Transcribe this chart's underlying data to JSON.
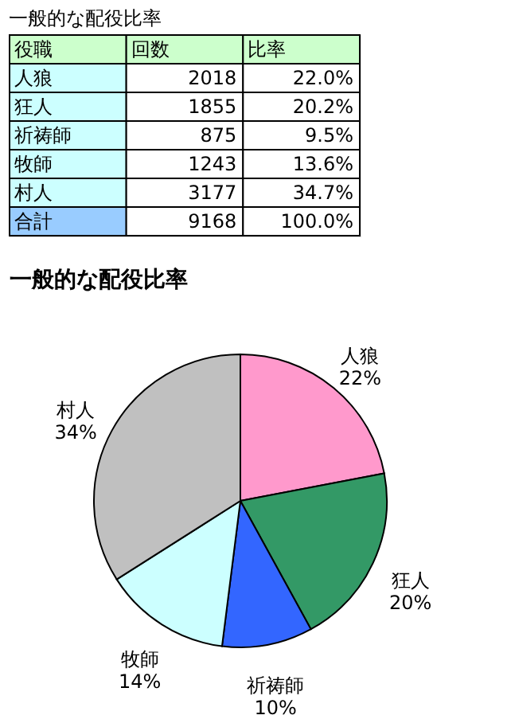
{
  "chart_data": [
    {
      "type": "other",
      "title": "一般的な配役比率",
      "annotations": [
        "役職",
        "回数",
        "比率",
        "人狼",
        "2018",
        "22.0%",
        "狂人",
        "1855",
        "20.2%",
        "祈祷師",
        "875",
        "9.5%",
        "牧師",
        "1243",
        "13.6%",
        "村人",
        "3177",
        "34.7%",
        "合計",
        "9168",
        "100.0%"
      ],
      "colors": [
        "#ccffcc",
        "#ccffff",
        "#ccffff",
        "#ccffff",
        "#ccffff",
        "#ccffff",
        "#99ccff"
      ]
    },
    {
      "type": "pie",
      "title": "一般的な配役比率",
      "categories": [
        "人狼",
        "狂人",
        "祈祷師",
        "牧師",
        "村人"
      ],
      "values": [
        22,
        20,
        10,
        14,
        34
      ],
      "value_labels": [
        "22%",
        "20%",
        "10%",
        "14%",
        "34%"
      ],
      "colors": [
        "#ff99cc",
        "#339966",
        "#3366ff",
        "#ccffff",
        "#c0c0c0"
      ]
    }
  ]
}
